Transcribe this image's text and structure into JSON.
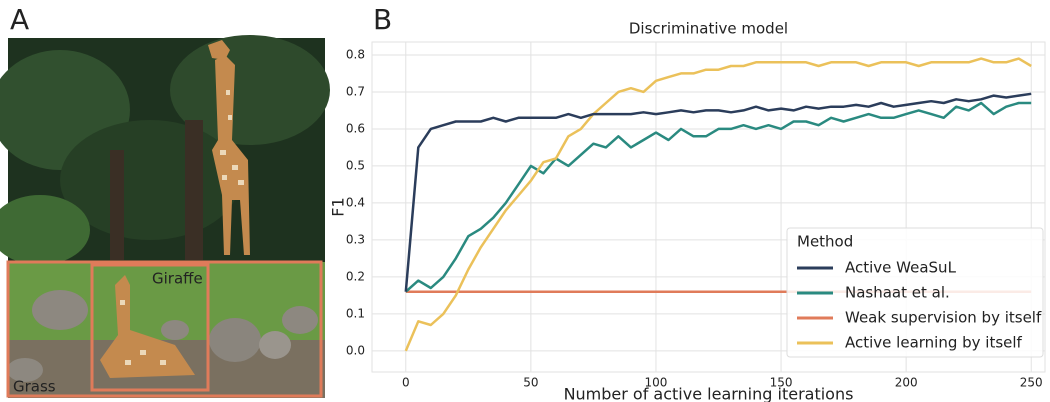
{
  "panels": {
    "a": "A",
    "b": "B"
  },
  "photo_labels": {
    "giraffe": "Giraffe",
    "grass": "Grass"
  },
  "chart_data": {
    "type": "line",
    "title": "Discriminative model",
    "x_label": "Number of active learning iterations",
    "y_label": "F1",
    "x": [
      0,
      5,
      10,
      15,
      20,
      25,
      30,
      35,
      40,
      45,
      50,
      55,
      60,
      65,
      70,
      75,
      80,
      85,
      90,
      95,
      100,
      105,
      110,
      115,
      120,
      125,
      130,
      135,
      140,
      145,
      150,
      155,
      160,
      165,
      170,
      175,
      180,
      185,
      190,
      195,
      200,
      205,
      210,
      215,
      220,
      225,
      230,
      235,
      240,
      245,
      250
    ],
    "series": [
      {
        "name": "Active WeaSuL",
        "color": "#2b3d5b",
        "values": [
          0.16,
          0.55,
          0.6,
          0.61,
          0.62,
          0.62,
          0.62,
          0.63,
          0.62,
          0.63,
          0.63,
          0.63,
          0.63,
          0.64,
          0.63,
          0.64,
          0.64,
          0.64,
          0.64,
          0.645,
          0.64,
          0.645,
          0.65,
          0.645,
          0.65,
          0.65,
          0.645,
          0.65,
          0.66,
          0.65,
          0.655,
          0.65,
          0.66,
          0.655,
          0.66,
          0.66,
          0.665,
          0.66,
          0.67,
          0.66,
          0.665,
          0.67,
          0.675,
          0.67,
          0.68,
          0.675,
          0.68,
          0.69,
          0.685,
          0.69,
          0.695
        ]
      },
      {
        "name": "Nashaat et al.",
        "color": "#2a8a80",
        "values": [
          0.16,
          0.19,
          0.17,
          0.2,
          0.25,
          0.31,
          0.33,
          0.36,
          0.4,
          0.45,
          0.5,
          0.48,
          0.52,
          0.5,
          0.53,
          0.56,
          0.55,
          0.58,
          0.55,
          0.57,
          0.59,
          0.57,
          0.6,
          0.58,
          0.58,
          0.6,
          0.6,
          0.61,
          0.6,
          0.61,
          0.6,
          0.62,
          0.62,
          0.61,
          0.63,
          0.62,
          0.63,
          0.64,
          0.63,
          0.63,
          0.64,
          0.65,
          0.64,
          0.63,
          0.66,
          0.65,
          0.67,
          0.64,
          0.66,
          0.67,
          0.67
        ]
      },
      {
        "name": "Weak supervision by itself",
        "color": "#e07b5a",
        "values": [
          0.16,
          0.16,
          0.16,
          0.16,
          0.16,
          0.16,
          0.16,
          0.16,
          0.16,
          0.16,
          0.16,
          0.16,
          0.16,
          0.16,
          0.16,
          0.16,
          0.16,
          0.16,
          0.16,
          0.16,
          0.16,
          0.16,
          0.16,
          0.16,
          0.16,
          0.16,
          0.16,
          0.16,
          0.16,
          0.16,
          0.16,
          0.16,
          0.16,
          0.16,
          0.16,
          0.16,
          0.16,
          0.16,
          0.16,
          0.16,
          0.16,
          0.16,
          0.16,
          0.16,
          0.16,
          0.16,
          0.16,
          0.16,
          0.16,
          0.16,
          0.16
        ]
      },
      {
        "name": "Active learning by itself",
        "color": "#ebc15a",
        "values": [
          0.0,
          0.08,
          0.07,
          0.1,
          0.15,
          0.22,
          0.28,
          0.33,
          0.38,
          0.42,
          0.46,
          0.51,
          0.52,
          0.58,
          0.6,
          0.64,
          0.67,
          0.7,
          0.71,
          0.7,
          0.73,
          0.74,
          0.75,
          0.75,
          0.76,
          0.76,
          0.77,
          0.77,
          0.78,
          0.78,
          0.78,
          0.78,
          0.78,
          0.77,
          0.78,
          0.78,
          0.78,
          0.77,
          0.78,
          0.78,
          0.78,
          0.77,
          0.78,
          0.78,
          0.78,
          0.78,
          0.79,
          0.78,
          0.78,
          0.79,
          0.77
        ]
      }
    ],
    "xlim": [
      -13.5,
      255.5
    ],
    "ylim": [
      -0.057,
      0.835
    ],
    "xticks": [
      0,
      50,
      100,
      150,
      200,
      250
    ],
    "yticks": [
      {
        "value": 0,
        "label": "0.0"
      },
      0.1,
      0.2,
      0.3,
      0.4,
      0.5,
      0.6,
      0.7,
      0.8
    ],
    "grid": true,
    "legend": {
      "title": "Method",
      "loc": "lower right"
    }
  }
}
